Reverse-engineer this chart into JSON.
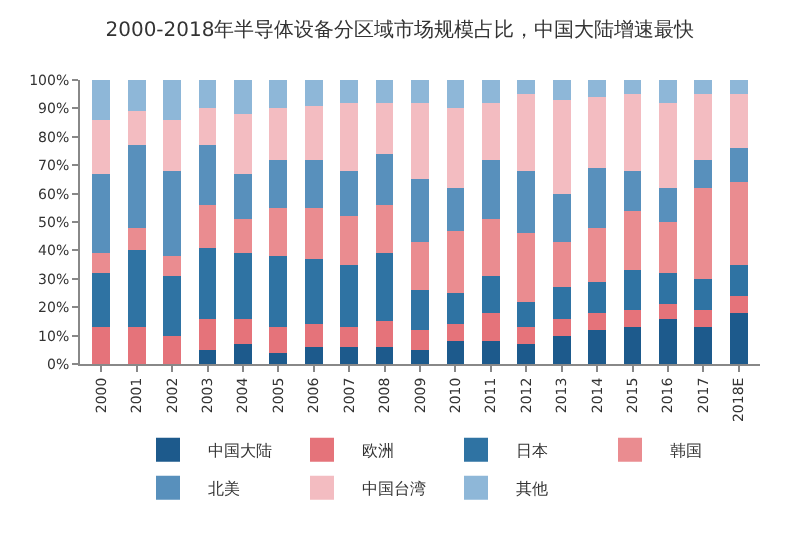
{
  "chart_data": {
    "type": "bar",
    "title": "2000-2018年半导体设备分区域市场规模占比，中国大陆增速最快",
    "stacked": true,
    "categories": [
      "2000",
      "2001",
      "2002",
      "2003",
      "2004",
      "2005",
      "2006",
      "2007",
      "2008",
      "2009",
      "2010",
      "2011",
      "2012",
      "2013",
      "2014",
      "2015",
      "2016",
      "2017",
      "2018E"
    ],
    "series": [
      {
        "name": "中国大陆",
        "color": "#1d5a8c",
        "values": [
          0,
          0,
          0,
          5,
          7,
          4,
          6,
          6,
          6,
          5,
          8,
          8,
          7,
          10,
          12,
          13,
          16,
          13,
          18
        ]
      },
      {
        "name": "欧洲",
        "color": "#e5737a",
        "values": [
          13,
          13,
          10,
          11,
          9,
          9,
          8,
          7,
          9,
          7,
          6,
          10,
          6,
          6,
          6,
          6,
          5,
          6,
          6
        ]
      },
      {
        "name": "日本",
        "color": "#2f73a3",
        "values": [
          19,
          27,
          21,
          25,
          23,
          25,
          23,
          22,
          24,
          14,
          11,
          13,
          9,
          11,
          11,
          14,
          11,
          11,
          11
        ]
      },
      {
        "name": "韩国",
        "color": "#ea8c90",
        "values": [
          7,
          8,
          7,
          15,
          12,
          17,
          18,
          17,
          17,
          17,
          22,
          20,
          24,
          16,
          19,
          21,
          18,
          32,
          29
        ]
      },
      {
        "name": "北美",
        "color": "#5890bc",
        "values": [
          28,
          29,
          30,
          21,
          16,
          17,
          17,
          16,
          18,
          22,
          15,
          21,
          22,
          17,
          21,
          14,
          12,
          10,
          12
        ]
      },
      {
        "name": "中国台湾",
        "color": "#f3bcc1",
        "values": [
          19,
          12,
          18,
          13,
          21,
          18,
          19,
          24,
          18,
          27,
          28,
          20,
          27,
          33,
          25,
          27,
          30,
          23,
          19
        ]
      },
      {
        "name": "其他",
        "color": "#8eb7d8",
        "values": [
          14,
          11,
          14,
          10,
          12,
          10,
          9,
          8,
          8,
          8,
          10,
          8,
          5,
          7,
          6,
          5,
          8,
          5,
          5
        ]
      }
    ],
    "ylim": [
      0,
      100
    ],
    "yticks": [
      {
        "value": 0,
        "label": "0%"
      },
      {
        "value": 10,
        "label": "10%"
      },
      {
        "value": 20,
        "label": "20%"
      },
      {
        "value": 30,
        "label": "30%"
      },
      {
        "value": 40,
        "label": "40%"
      },
      {
        "value": 50,
        "label": "50%"
      },
      {
        "value": 60,
        "label": "60%"
      },
      {
        "value": 70,
        "label": "70%"
      },
      {
        "value": 80,
        "label": "80%"
      },
      {
        "value": 90,
        "label": "90%"
      },
      {
        "value": 100,
        "label": "100%"
      }
    ],
    "legend": "bottom"
  }
}
